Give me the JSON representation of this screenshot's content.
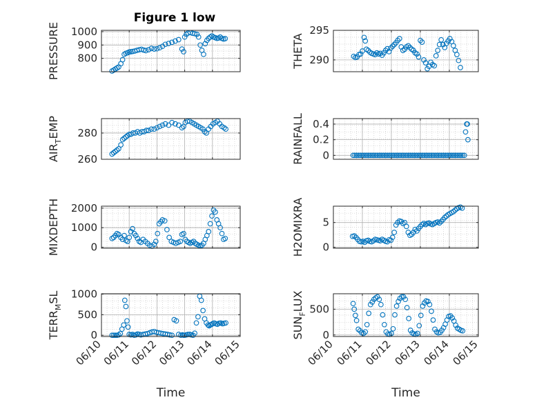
{
  "figure": {
    "title": "Figure 1 low"
  },
  "style": {
    "marker_color": "#0072BD",
    "axis_color": "#262626",
    "grid_color": "#b0b0b0"
  },
  "chart_data": [
    {
      "type": "scatter",
      "ylabel": "PRESSURE",
      "ylabel_sub": "",
      "ylabel_end": "",
      "ylim": [
        700,
        1010
      ],
      "yticks": [
        800,
        900,
        1000
      ],
      "xlim": [
        0,
        5
      ],
      "xticks": [],
      "x": [
        0.38,
        0.44,
        0.5,
        0.56,
        0.62,
        0.7,
        0.76,
        0.82,
        0.88,
        0.94,
        1.0,
        1.06,
        1.12,
        1.2,
        1.28,
        1.36,
        1.44,
        1.52,
        1.6,
        1.7,
        1.8,
        1.9,
        2.0,
        2.1,
        2.2,
        2.3,
        2.42,
        2.54,
        2.66,
        2.78,
        2.9,
        2.96,
        3.0,
        3.06,
        3.12,
        3.2,
        3.28,
        3.36,
        3.44,
        3.5,
        3.56,
        3.62,
        3.68,
        3.74,
        3.8,
        3.86,
        3.92,
        3.98,
        4.04,
        4.1,
        4.16,
        4.22,
        4.28,
        4.34,
        4.4,
        4.46
      ],
      "y": [
        705,
        712,
        720,
        728,
        735,
        760,
        790,
        830,
        838,
        842,
        848,
        850,
        852,
        855,
        860,
        865,
        868,
        862,
        858,
        865,
        875,
        870,
        872,
        880,
        890,
        905,
        912,
        920,
        930,
        940,
        870,
        850,
        960,
        980,
        990,
        993,
        988,
        985,
        980,
        960,
        900,
        860,
        830,
        910,
        935,
        950,
        960,
        968,
        960,
        955,
        950,
        952,
        960,
        950,
        945,
        948
      ]
    },
    {
      "type": "scatter",
      "ylabel": "THETA",
      "ylabel_sub": "",
      "ylabel_end": "",
      "ylim": [
        288,
        295
      ],
      "yticks": [
        290,
        295
      ],
      "xlim": [
        0,
        5
      ],
      "xticks": [],
      "x": [
        0.7,
        0.76,
        0.82,
        0.88,
        0.94,
        1.0,
        1.06,
        1.1,
        1.14,
        1.2,
        1.26,
        1.32,
        1.38,
        1.44,
        1.5,
        1.56,
        1.62,
        1.68,
        1.74,
        1.8,
        1.86,
        1.92,
        1.98,
        2.04,
        2.1,
        2.16,
        2.22,
        2.28,
        2.34,
        2.4,
        2.46,
        2.52,
        2.58,
        2.64,
        2.7,
        2.76,
        2.82,
        2.88,
        2.94,
        3.0,
        3.06,
        3.12,
        3.18,
        3.24,
        3.3,
        3.36,
        3.42,
        3.48,
        3.54,
        3.6,
        3.66,
        3.72,
        3.78,
        3.84,
        3.9,
        3.96,
        4.02,
        4.08,
        4.14,
        4.2,
        4.26,
        4.32,
        4.38
      ],
      "y": [
        290.6,
        290.4,
        290.5,
        290.9,
        291.0,
        291.5,
        293.8,
        293.2,
        291.8,
        291.6,
        291.3,
        291.1,
        291.0,
        290.9,
        291.2,
        291.0,
        291.1,
        290.8,
        291.2,
        291.6,
        291.9,
        291.4,
        292.0,
        292.3,
        292.6,
        292.9,
        293.3,
        293.6,
        292.2,
        291.6,
        291.8,
        292.2,
        292.4,
        292.1,
        291.8,
        291.6,
        291.2,
        291.0,
        290.5,
        293.3,
        293.0,
        290.0,
        289.5,
        288.5,
        288.9,
        289.6,
        289.2,
        289.0,
        290.7,
        291.6,
        292.6,
        293.4,
        292.6,
        292.1,
        292.8,
        293.2,
        293.6,
        293.1,
        292.4,
        291.6,
        290.9,
        289.9,
        288.7
      ]
    },
    {
      "type": "scatter",
      "ylabel": "AIR",
      "ylabel_sub": "T",
      "ylabel_end": "EMP",
      "ylim": [
        260,
        291
      ],
      "yticks": [
        260,
        280
      ],
      "xlim": [
        0,
        5
      ],
      "xticks": [],
      "x": [
        0.38,
        0.44,
        0.5,
        0.56,
        0.62,
        0.7,
        0.76,
        0.82,
        0.88,
        0.94,
        1.0,
        1.06,
        1.14,
        1.22,
        1.3,
        1.38,
        1.46,
        1.54,
        1.62,
        1.7,
        1.8,
        1.9,
        2.0,
        2.1,
        2.2,
        2.3,
        2.42,
        2.54,
        2.66,
        2.78,
        2.9,
        2.96,
        3.02,
        3.1,
        3.18,
        3.26,
        3.34,
        3.42,
        3.5,
        3.58,
        3.66,
        3.72,
        3.78,
        3.86,
        3.94,
        4.02,
        4.1,
        4.18,
        4.26,
        4.34,
        4.42,
        4.48
      ],
      "y": [
        264,
        265,
        266,
        267,
        268,
        271,
        275,
        276,
        277,
        278,
        279,
        279,
        280,
        280,
        281,
        280,
        281,
        281,
        282,
        282,
        283,
        283,
        284,
        285,
        286,
        287,
        286,
        288,
        287,
        286,
        284,
        285,
        288,
        289,
        289,
        288,
        287,
        286,
        285,
        284,
        283,
        281,
        280,
        283,
        285,
        287,
        288,
        289,
        287,
        285,
        284,
        283
      ]
    },
    {
      "type": "scatter",
      "ylabel": "RAINFALL",
      "ylabel_sub": "",
      "ylabel_end": "",
      "ylim": [
        -0.05,
        0.47
      ],
      "yticks": [
        0,
        0.2,
        0.4
      ],
      "xlim": [
        0,
        5
      ],
      "xticks": [],
      "x": [
        0.68,
        0.74,
        0.8,
        0.86,
        0.92,
        0.98,
        1.04,
        1.1,
        1.16,
        1.22,
        1.28,
        1.34,
        1.4,
        1.46,
        1.52,
        1.58,
        1.64,
        1.7,
        1.76,
        1.82,
        1.88,
        1.94,
        2.0,
        2.06,
        2.12,
        2.18,
        2.24,
        2.3,
        2.36,
        2.42,
        2.48,
        2.54,
        2.6,
        2.66,
        2.72,
        2.78,
        2.84,
        2.9,
        2.96,
        3.02,
        3.08,
        3.14,
        3.2,
        3.26,
        3.32,
        3.38,
        3.44,
        3.5,
        3.56,
        3.62,
        3.68,
        3.74,
        3.8,
        3.86,
        3.92,
        3.98,
        4.04,
        4.1,
        4.16,
        4.22,
        4.28,
        4.34,
        4.4,
        4.46,
        4.52,
        4.56,
        4.6,
        4.62,
        4.64
      ],
      "y": [
        0,
        0,
        0,
        0,
        0,
        0,
        0,
        0,
        0,
        0,
        0,
        0,
        0,
        0,
        0,
        0,
        0,
        0,
        0,
        0,
        0,
        0,
        0,
        0,
        0,
        0,
        0,
        0,
        0,
        0,
        0,
        0,
        0,
        0,
        0,
        0,
        0,
        0,
        0,
        0,
        0,
        0,
        0,
        0,
        0,
        0,
        0,
        0,
        0,
        0,
        0,
        0,
        0,
        0,
        0,
        0,
        0,
        0,
        0,
        0,
        0,
        0,
        0,
        0,
        0,
        0.3,
        0.4,
        0.4,
        0.2
      ]
    },
    {
      "type": "scatter",
      "ylabel": "MIXDEPTH",
      "ylabel_sub": "",
      "ylabel_end": "",
      "ylim": [
        -50,
        2100
      ],
      "yticks": [
        0,
        1000,
        2000
      ],
      "xlim": [
        0,
        5
      ],
      "xticks": [],
      "x": [
        0.38,
        0.44,
        0.5,
        0.56,
        0.62,
        0.7,
        0.76,
        0.82,
        0.88,
        0.94,
        1.0,
        1.06,
        1.12,
        1.18,
        1.24,
        1.3,
        1.36,
        1.42,
        1.5,
        1.58,
        1.66,
        1.74,
        1.82,
        1.9,
        1.96,
        2.02,
        2.08,
        2.14,
        2.2,
        2.28,
        2.36,
        2.44,
        2.52,
        2.6,
        2.68,
        2.76,
        2.84,
        2.9,
        2.96,
        3.02,
        3.08,
        3.14,
        3.2,
        3.26,
        3.32,
        3.38,
        3.44,
        3.5,
        3.56,
        3.62,
        3.68,
        3.74,
        3.8,
        3.86,
        3.92,
        3.98,
        4.04,
        4.1,
        4.16,
        4.22,
        4.28,
        4.34,
        4.4,
        4.46
      ],
      "y": [
        450,
        500,
        600,
        700,
        650,
        500,
        400,
        600,
        350,
        300,
        500,
        800,
        950,
        700,
        600,
        450,
        300,
        250,
        400,
        300,
        200,
        100,
        50,
        150,
        300,
        700,
        1200,
        1300,
        1400,
        1350,
        900,
        500,
        300,
        250,
        200,
        250,
        300,
        650,
        700,
        400,
        300,
        250,
        200,
        250,
        300,
        200,
        150,
        100,
        80,
        100,
        200,
        400,
        600,
        800,
        1200,
        1600,
        1900,
        1800,
        1400,
        1200,
        1000,
        700,
        400,
        450
      ]
    },
    {
      "type": "scatter",
      "ylabel": "H2OMIXRA",
      "ylabel_sub": "",
      "ylabel_end": "",
      "ylim": [
        -0.2,
        8.3
      ],
      "yticks": [
        0,
        5
      ],
      "xlim": [
        0,
        5
      ],
      "xticks": [],
      "x": [
        0.66,
        0.72,
        0.78,
        0.84,
        0.9,
        0.96,
        1.02,
        1.08,
        1.14,
        1.2,
        1.26,
        1.32,
        1.38,
        1.44,
        1.5,
        1.56,
        1.62,
        1.68,
        1.74,
        1.8,
        1.86,
        1.92,
        1.98,
        2.04,
        2.1,
        2.16,
        2.22,
        2.28,
        2.34,
        2.4,
        2.46,
        2.52,
        2.58,
        2.64,
        2.7,
        2.76,
        2.82,
        2.88,
        2.94,
        3.0,
        3.06,
        3.12,
        3.18,
        3.24,
        3.3,
        3.36,
        3.42,
        3.48,
        3.54,
        3.6,
        3.66,
        3.72,
        3.78,
        3.84,
        3.9,
        3.96,
        4.02,
        4.08,
        4.14,
        4.2,
        4.26,
        4.32,
        4.38,
        4.44
      ],
      "y": [
        2.2,
        2.3,
        2.0,
        1.6,
        1.2,
        1.1,
        1.2,
        1.0,
        1.3,
        1.4,
        1.2,
        1.1,
        1.3,
        1.6,
        1.5,
        1.4,
        1.3,
        1.6,
        1.4,
        1.2,
        1.1,
        1.5,
        1.4,
        2.0,
        3.0,
        4.5,
        5.0,
        5.3,
        5.2,
        4.8,
        5.0,
        4.2,
        3.0,
        2.4,
        2.6,
        3.0,
        3.6,
        3.3,
        3.8,
        4.2,
        4.6,
        4.8,
        4.6,
        4.8,
        4.9,
        4.7,
        4.6,
        4.8,
        5.0,
        5.1,
        4.9,
        5.2,
        5.6,
        6.0,
        6.3,
        6.6,
        6.8,
        7.0,
        7.2,
        7.5,
        7.8,
        8.0,
        8.1,
        7.9
      ]
    },
    {
      "type": "scatter",
      "ylabel": "TERR",
      "ylabel_sub": "M",
      "ylabel_end": "SL",
      "ylim": [
        -30,
        1010
      ],
      "yticks": [
        0,
        500,
        1000
      ],
      "xlim": [
        0,
        5
      ],
      "xticks": [
        "06/10",
        "06/11",
        "06/12",
        "06/13",
        "06/14",
        "06/15"
      ],
      "xticks_at": [
        0,
        1,
        2,
        3,
        4,
        5
      ],
      "xlabel": "Time",
      "x": [
        0.38,
        0.44,
        0.5,
        0.56,
        0.62,
        0.68,
        0.74,
        0.8,
        0.84,
        0.88,
        0.92,
        0.96,
        1.0,
        1.06,
        1.12,
        1.18,
        1.24,
        1.3,
        1.36,
        1.42,
        1.5,
        1.58,
        1.66,
        1.74,
        1.82,
        1.9,
        1.98,
        2.06,
        2.14,
        2.22,
        2.3,
        2.38,
        2.46,
        2.54,
        2.62,
        2.7,
        2.78,
        2.86,
        2.92,
        2.96,
        3.0,
        3.06,
        3.12,
        3.18,
        3.24,
        3.3,
        3.36,
        3.42,
        3.48,
        3.54,
        3.6,
        3.66,
        3.72,
        3.78,
        3.84,
        3.88,
        3.92,
        3.96,
        4.0,
        4.06,
        4.12,
        4.18,
        4.24,
        4.3,
        4.36,
        4.42,
        4.48
      ],
      "y": [
        0,
        0,
        0,
        0,
        10,
        40,
        150,
        250,
        850,
        700,
        350,
        200,
        20,
        10,
        20,
        0,
        10,
        30,
        20,
        10,
        20,
        30,
        40,
        60,
        80,
        90,
        70,
        60,
        50,
        40,
        30,
        20,
        10,
        0,
        380,
        350,
        20,
        0,
        10,
        0,
        0,
        10,
        20,
        20,
        10,
        0,
        50,
        300,
        450,
        950,
        850,
        600,
        400,
        300,
        250,
        230,
        250,
        260,
        280,
        300,
        280,
        270,
        290,
        300,
        280,
        290,
        300
      ]
    },
    {
      "type": "scatter",
      "ylabel": "SUN",
      "ylabel_sub": "F",
      "ylabel_end": "LUX",
      "ylim": [
        -30,
        800
      ],
      "yticks": [
        0,
        500
      ],
      "xlim": [
        0,
        5
      ],
      "xticks": [
        "06/10",
        "06/11",
        "06/12",
        "06/13",
        "06/14",
        "06/15"
      ],
      "xticks_at": [
        0,
        1,
        2,
        3,
        4,
        5
      ],
      "xlabel": "Time",
      "x": [
        0.68,
        0.72,
        0.76,
        0.8,
        0.86,
        0.92,
        0.98,
        1.04,
        1.1,
        1.16,
        1.22,
        1.28,
        1.34,
        1.4,
        1.46,
        1.52,
        1.58,
        1.64,
        1.7,
        1.76,
        1.82,
        1.88,
        1.94,
        2.0,
        2.06,
        2.12,
        2.18,
        2.24,
        2.3,
        2.36,
        2.42,
        2.48,
        2.54,
        2.6,
        2.66,
        2.72,
        2.78,
        2.84,
        2.9,
        2.96,
        3.02,
        3.08,
        3.14,
        3.2,
        3.26,
        3.32,
        3.38,
        3.44,
        3.5,
        3.56,
        3.62,
        3.68,
        3.74,
        3.8,
        3.86,
        3.92,
        3.98,
        4.04,
        4.1,
        4.16,
        4.22,
        4.28,
        4.34,
        4.4,
        4.46
      ],
      "y": [
        610,
        500,
        380,
        280,
        110,
        80,
        40,
        30,
        60,
        200,
        420,
        590,
        640,
        690,
        720,
        740,
        690,
        590,
        390,
        200,
        60,
        20,
        10,
        30,
        120,
        390,
        560,
        650,
        710,
        740,
        740,
        690,
        530,
        320,
        90,
        40,
        20,
        10,
        30,
        180,
        380,
        560,
        620,
        660,
        650,
        590,
        460,
        290,
        110,
        60,
        40,
        50,
        90,
        140,
        210,
        290,
        360,
        370,
        330,
        270,
        190,
        130,
        110,
        90,
        80
      ]
    }
  ]
}
